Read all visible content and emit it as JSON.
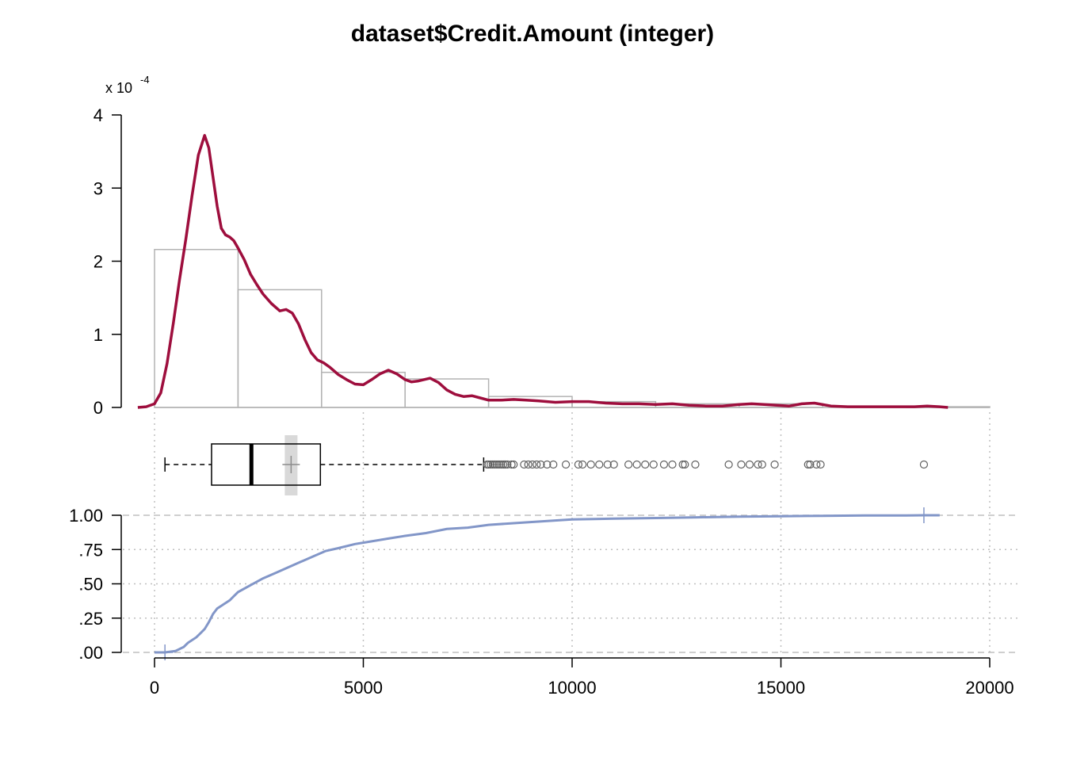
{
  "chart_data": {
    "type": "histogram-density-boxplot-ecdf",
    "title": "dataset$Credit.Amount (integer)",
    "colors": {
      "density": "#9E0E3D",
      "histogram_border": "#B3B3B3",
      "ecdf": "#8296C8",
      "grid": "#BFBFBF",
      "mean_bar": "#D9D9D9",
      "outlier": "#606060"
    },
    "x_axis": {
      "range": [
        0,
        20000
      ],
      "ticks": [
        0,
        5000,
        10000,
        15000,
        20000
      ],
      "tick_labels": [
        "0",
        "5000",
        "10000",
        "15000",
        "20000"
      ]
    },
    "histogram": {
      "scale_label": "x 10",
      "scale_exponent": "-4",
      "ylim": [
        0,
        4
      ],
      "yticks": [
        0,
        1,
        2,
        3,
        4
      ],
      "ytick_labels": [
        "0",
        "1",
        "2",
        "3",
        "4"
      ],
      "bins": [
        {
          "from": 0,
          "to": 2000,
          "density": 2.16
        },
        {
          "from": 2000,
          "to": 4000,
          "density": 1.61
        },
        {
          "from": 4000,
          "to": 6000,
          "density": 0.48
        },
        {
          "from": 6000,
          "to": 8000,
          "density": 0.39
        },
        {
          "from": 8000,
          "to": 10000,
          "density": 0.15
        },
        {
          "from": 10000,
          "to": 12000,
          "density": 0.08
        },
        {
          "from": 12000,
          "to": 14000,
          "density": 0.05
        },
        {
          "from": 14000,
          "to": 16000,
          "density": 0.05
        },
        {
          "from": 16000,
          "to": 18000,
          "density": 0.0
        },
        {
          "from": 18000,
          "to": 20000,
          "density": 0.01
        }
      ],
      "density_x": [
        -400,
        -200,
        0,
        150,
        300,
        450,
        600,
        750,
        900,
        1050,
        1200,
        1300,
        1400,
        1500,
        1600,
        1700,
        1800,
        1900,
        2000,
        2150,
        2300,
        2450,
        2600,
        2800,
        3000,
        3150,
        3300,
        3450,
        3600,
        3750,
        3900,
        4050,
        4200,
        4400,
        4600,
        4800,
        5000,
        5200,
        5400,
        5600,
        5800,
        6000,
        6150,
        6300,
        6450,
        6600,
        6800,
        7000,
        7200,
        7400,
        7600,
        7800,
        8000,
        8300,
        8600,
        8900,
        9200,
        9600,
        10000,
        10400,
        10800,
        11200,
        11600,
        12000,
        12400,
        12800,
        13200,
        13600,
        14000,
        14300,
        14600,
        14900,
        15200,
        15500,
        15800,
        16200,
        16600,
        17000,
        17400,
        17800,
        18200,
        18500,
        18800,
        19000
      ],
      "density_y": [
        0.0,
        0.01,
        0.05,
        0.2,
        0.6,
        1.15,
        1.75,
        2.3,
        2.9,
        3.45,
        3.72,
        3.55,
        3.15,
        2.75,
        2.45,
        2.36,
        2.33,
        2.28,
        2.18,
        2.02,
        1.82,
        1.68,
        1.55,
        1.42,
        1.32,
        1.34,
        1.29,
        1.14,
        0.93,
        0.75,
        0.65,
        0.61,
        0.55,
        0.45,
        0.38,
        0.32,
        0.31,
        0.38,
        0.46,
        0.51,
        0.46,
        0.38,
        0.35,
        0.36,
        0.38,
        0.4,
        0.34,
        0.24,
        0.18,
        0.15,
        0.16,
        0.13,
        0.1,
        0.1,
        0.11,
        0.1,
        0.09,
        0.07,
        0.08,
        0.08,
        0.06,
        0.05,
        0.05,
        0.04,
        0.05,
        0.03,
        0.02,
        0.02,
        0.04,
        0.05,
        0.04,
        0.03,
        0.02,
        0.05,
        0.06,
        0.02,
        0.01,
        0.01,
        0.01,
        0.01,
        0.01,
        0.02,
        0.01,
        0.0
      ]
    },
    "boxplot": {
      "min": 250,
      "q1": 1366,
      "median": 2320,
      "q3": 3972,
      "whisker_high": 7882,
      "mean": 3271,
      "outliers": [
        7966,
        8000,
        8050,
        8100,
        8150,
        8200,
        8250,
        8300,
        8350,
        8400,
        8450,
        8550,
        8600,
        8850,
        8950,
        9050,
        9150,
        9250,
        9400,
        9550,
        9850,
        10150,
        10250,
        10450,
        10650,
        10850,
        11000,
        11350,
        11550,
        11750,
        11950,
        12200,
        12400,
        12650,
        12700,
        12950,
        13750,
        14050,
        14250,
        14450,
        14550,
        14850,
        15650,
        15700,
        15850,
        15950,
        18424
      ]
    },
    "ecdf": {
      "ylim": [
        0,
        1
      ],
      "yticks": [
        0,
        0.25,
        0.5,
        0.75,
        1
      ],
      "ytick_labels": [
        ".00",
        ".25",
        ".50",
        ".75",
        "1.00"
      ],
      "x": [
        250,
        500,
        700,
        800,
        1000,
        1100,
        1200,
        1300,
        1400,
        1500,
        1600,
        1700,
        1800,
        1900,
        2000,
        2300,
        2600,
        2900,
        3200,
        3500,
        3800,
        4100,
        4400,
        4800,
        5200,
        5600,
        6000,
        6500,
        7000,
        7500,
        8000,
        9000,
        10000,
        11000,
        12000,
        13000,
        14000,
        15000,
        16000,
        17000,
        18000,
        18424
      ],
      "y": [
        0.0,
        0.01,
        0.04,
        0.07,
        0.11,
        0.14,
        0.17,
        0.22,
        0.28,
        0.32,
        0.34,
        0.36,
        0.38,
        0.41,
        0.44,
        0.49,
        0.54,
        0.58,
        0.62,
        0.66,
        0.7,
        0.74,
        0.76,
        0.79,
        0.81,
        0.83,
        0.85,
        0.87,
        0.9,
        0.91,
        0.93,
        0.95,
        0.97,
        0.975,
        0.98,
        0.985,
        0.99,
        0.993,
        0.996,
        0.998,
        0.999,
        1.0
      ]
    }
  }
}
